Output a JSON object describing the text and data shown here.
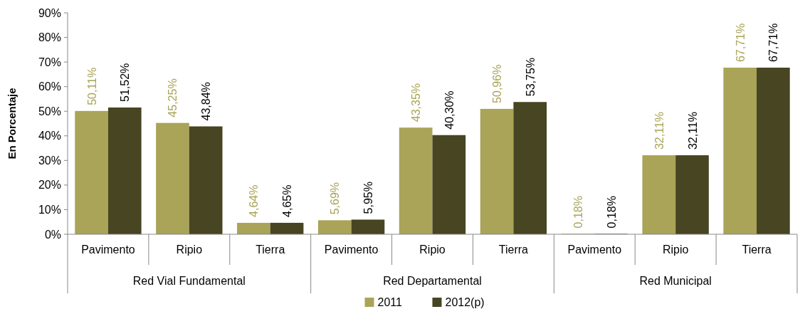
{
  "chart_data": {
    "type": "bar",
    "ylabel": "En Porcentaje",
    "categories": [
      "Pavimento",
      "Ripio",
      "Tierra",
      "Pavimento",
      "Ripio",
      "Tierra",
      "Pavimento",
      "Ripio",
      "Tierra"
    ],
    "annotations": [
      "Red Vial Fundamental",
      "Red Departamental",
      "Red Municipal"
    ],
    "series": [
      {
        "name": "2011",
        "color": "#a9a457",
        "values": [
          50.11,
          45.25,
          4.64,
          5.69,
          43.35,
          50.96,
          0.18,
          32.11,
          67.71
        ],
        "value_labels": [
          "50,11%",
          "45,25%",
          "4,64%",
          "5,69%",
          "43,35%",
          "50,96%",
          "0,18%",
          "32,11%",
          "67,71%"
        ]
      },
      {
        "name": "2012(p)",
        "color": "#474522",
        "values": [
          51.52,
          43.84,
          4.65,
          5.95,
          40.3,
          53.75,
          0.18,
          32.11,
          67.71
        ],
        "value_labels": [
          "51,52%",
          "43,84%",
          "4,65%",
          "5,95%",
          "40,30%",
          "53,75%",
          "0,18%",
          "32,11%",
          "67,71%"
        ]
      }
    ],
    "ylim": [
      0,
      90
    ],
    "yticks": [
      {
        "value": 0,
        "label": "0%"
      },
      {
        "value": 10,
        "label": "10%"
      },
      {
        "value": 20,
        "label": "20%"
      },
      {
        "value": 30,
        "label": "30%"
      },
      {
        "value": 40,
        "label": "40%"
      },
      {
        "value": 50,
        "label": "50%"
      },
      {
        "value": 60,
        "label": "60%"
      },
      {
        "value": 70,
        "label": "70%"
      },
      {
        "value": 80,
        "label": "80%"
      },
      {
        "value": 90,
        "label": "90%"
      }
    ],
    "grid": false,
    "legend": "bottom"
  }
}
